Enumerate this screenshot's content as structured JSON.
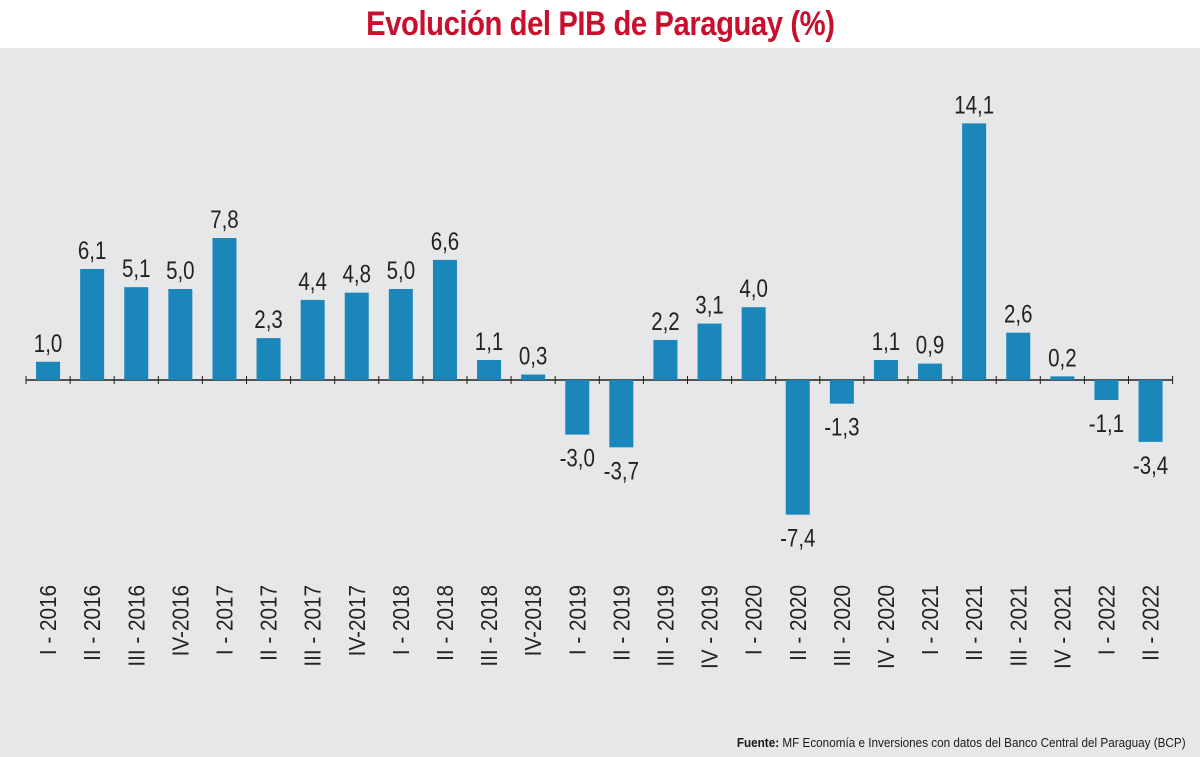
{
  "header": {
    "title": "Evolución del PIB de Paraguay (%)"
  },
  "footer": {
    "source_label": "Fuente:",
    "source_text": "MF Economía e Inversiones con datos del Banco Central del Paraguay (BCP)"
  },
  "colors": {
    "bar": "#1a86b9",
    "title": "#c8102e",
    "panel": "#e6e7e9",
    "axis": "#222222"
  },
  "chart_data": {
    "type": "bar",
    "title": "Evolución del PIB de Paraguay (%)",
    "xlabel": "",
    "ylabel": "",
    "ylim": [
      -7.4,
      14.1
    ],
    "grid": false,
    "legend": "none",
    "categories": [
      "I - 2016",
      "II - 2016",
      "III - 2016",
      "IV-2016",
      "I - 2017",
      "II - 2017",
      "III - 2017",
      "IV-2017",
      "I - 2018",
      "II - 2018",
      "III - 2018",
      "IV-2018",
      "I - 2019",
      "II - 2019",
      "III - 2019",
      "IV - 2019",
      "I - 2020",
      "II - 2020",
      "III - 2020",
      "IV - 2020",
      "I - 2021",
      "II - 2021",
      "III - 2021",
      "IV - 2021",
      "I - 2022",
      "II - 2022"
    ],
    "values": [
      1.0,
      6.1,
      5.1,
      5.0,
      7.8,
      2.3,
      4.4,
      4.8,
      5.0,
      6.6,
      1.1,
      0.3,
      -3.0,
      -3.7,
      2.2,
      3.1,
      4.0,
      -7.4,
      -1.3,
      1.1,
      0.9,
      14.1,
      2.6,
      0.2,
      -1.1,
      -3.4
    ],
    "data_labels": [
      "1,0",
      "6,1",
      "5,1",
      "5,0",
      "7,8",
      "2,3",
      "4,4",
      "4,8",
      "5,0",
      "6,6",
      "1,1",
      "0,3",
      "-3,0",
      "-3,7",
      "2,2",
      "3,1",
      "4,0",
      "-7,4",
      "-1,3",
      "1,1",
      "0,9",
      "14,1",
      "2,6",
      "0,2",
      "-1,1",
      "-3,4"
    ]
  }
}
